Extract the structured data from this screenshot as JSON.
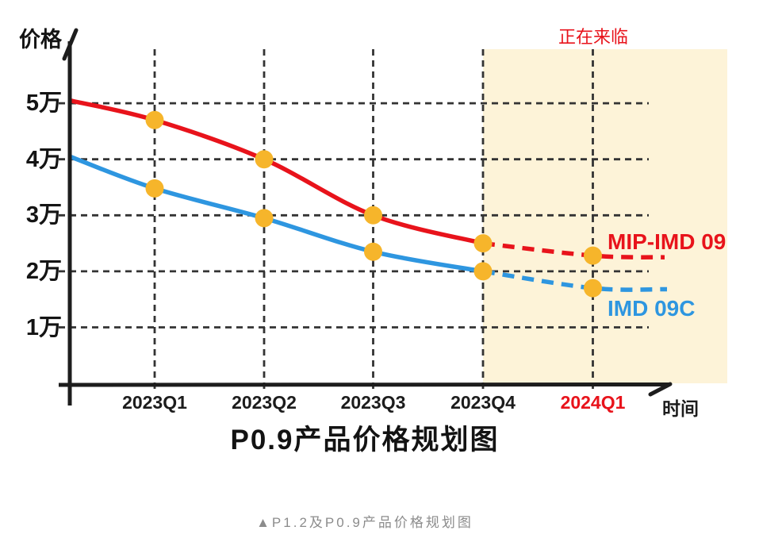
{
  "figure": {
    "caption": "▲P1.2及P0.9产品价格规划图"
  },
  "chart_data": {
    "type": "line",
    "title": "P0.9产品价格规划图",
    "xlabel": "时间",
    "ylabel": "价格",
    "unit": "万",
    "grid": "dashed",
    "categories": [
      "2023Q1",
      "2023Q2",
      "2023Q3",
      "2023Q4",
      "2024Q1"
    ],
    "x_tick_colors": [
      "#1c1c1c",
      "#1c1c1c",
      "#1c1c1c",
      "#1c1c1c",
      "#e8131b"
    ],
    "y_ticks": [
      {
        "value": 5,
        "label": "5万"
      },
      {
        "value": 4,
        "label": "4万"
      },
      {
        "value": 3,
        "label": "3万"
      },
      {
        "value": 2,
        "label": "2万"
      },
      {
        "value": 1,
        "label": "1万"
      }
    ],
    "ylim": [
      0,
      5.6
    ],
    "marker_color": "#f6b52b",
    "axis_color": "#1d1d1d",
    "gridline_color": "#333333",
    "highlight": {
      "label": "正在来临",
      "label_color": "#e8131b",
      "from_category": "2023Q4",
      "color": "#fdf3d8"
    },
    "series": [
      {
        "name": "MIP-IMD 09",
        "color": "#e8131b",
        "axis_start_value": 5.05,
        "values": [
          4.7,
          4.0,
          3.0,
          2.5,
          2.28
        ],
        "projected_tail_value": 2.25,
        "dashed_from_category": "2023Q4"
      },
      {
        "name": "IMD 09C",
        "color": "#2e96e0",
        "axis_start_value": 4.05,
        "values": [
          3.48,
          2.95,
          2.35,
          2.0,
          1.7
        ],
        "projected_tail_value": 1.68,
        "dashed_from_category": "2023Q4"
      }
    ],
    "legend_position": "inline-right"
  }
}
